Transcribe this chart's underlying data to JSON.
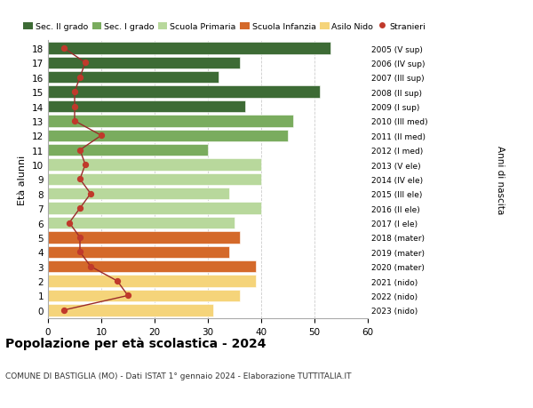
{
  "ages": [
    18,
    17,
    16,
    15,
    14,
    13,
    12,
    11,
    10,
    9,
    8,
    7,
    6,
    5,
    4,
    3,
    2,
    1,
    0
  ],
  "bar_values": [
    53,
    36,
    32,
    51,
    37,
    46,
    45,
    30,
    40,
    40,
    34,
    40,
    35,
    36,
    34,
    39,
    39,
    36,
    31
  ],
  "stranieri": [
    3,
    7,
    6,
    5,
    5,
    5,
    10,
    6,
    7,
    6,
    8,
    6,
    4,
    6,
    6,
    8,
    13,
    15,
    3
  ],
  "right_labels": [
    "2005 (V sup)",
    "2006 (IV sup)",
    "2007 (III sup)",
    "2008 (II sup)",
    "2009 (I sup)",
    "2010 (III med)",
    "2011 (II med)",
    "2012 (I med)",
    "2013 (V ele)",
    "2014 (IV ele)",
    "2015 (III ele)",
    "2016 (II ele)",
    "2017 (I ele)",
    "2018 (mater)",
    "2019 (mater)",
    "2020 (mater)",
    "2021 (nido)",
    "2022 (nido)",
    "2023 (nido)"
  ],
  "bar_colors": [
    "#3d6b35",
    "#3d6b35",
    "#3d6b35",
    "#3d6b35",
    "#3d6b35",
    "#7aac5e",
    "#7aac5e",
    "#7aac5e",
    "#b8d89c",
    "#b8d89c",
    "#b8d89c",
    "#b8d89c",
    "#b8d89c",
    "#d4692a",
    "#d4692a",
    "#d4692a",
    "#f5d47a",
    "#f5d47a",
    "#f5d47a"
  ],
  "stranieri_color": "#c0392b",
  "stranieri_line_color": "#9b2b2b",
  "title": "Popolazione per età scolastica - 2024",
  "subtitle": "COMUNE DI BASTIGLIA (MO) - Dati ISTAT 1° gennaio 2024 - Elaborazione TUTTITALIA.IT",
  "ylabel": "Età alunni",
  "right_ylabel": "Anni di nascita",
  "xlim": [
    0,
    60
  ],
  "xticks": [
    0,
    10,
    20,
    30,
    40,
    50,
    60
  ],
  "legend_labels": [
    "Sec. II grado",
    "Sec. I grado",
    "Scuola Primaria",
    "Scuola Infanzia",
    "Asilo Nido",
    "Stranieri"
  ],
  "legend_colors": [
    "#3d6b35",
    "#7aac5e",
    "#b8d89c",
    "#d4692a",
    "#f5d47a",
    "#c0392b"
  ],
  "bg_color": "#ffffff",
  "grid_color": "#cccccc"
}
